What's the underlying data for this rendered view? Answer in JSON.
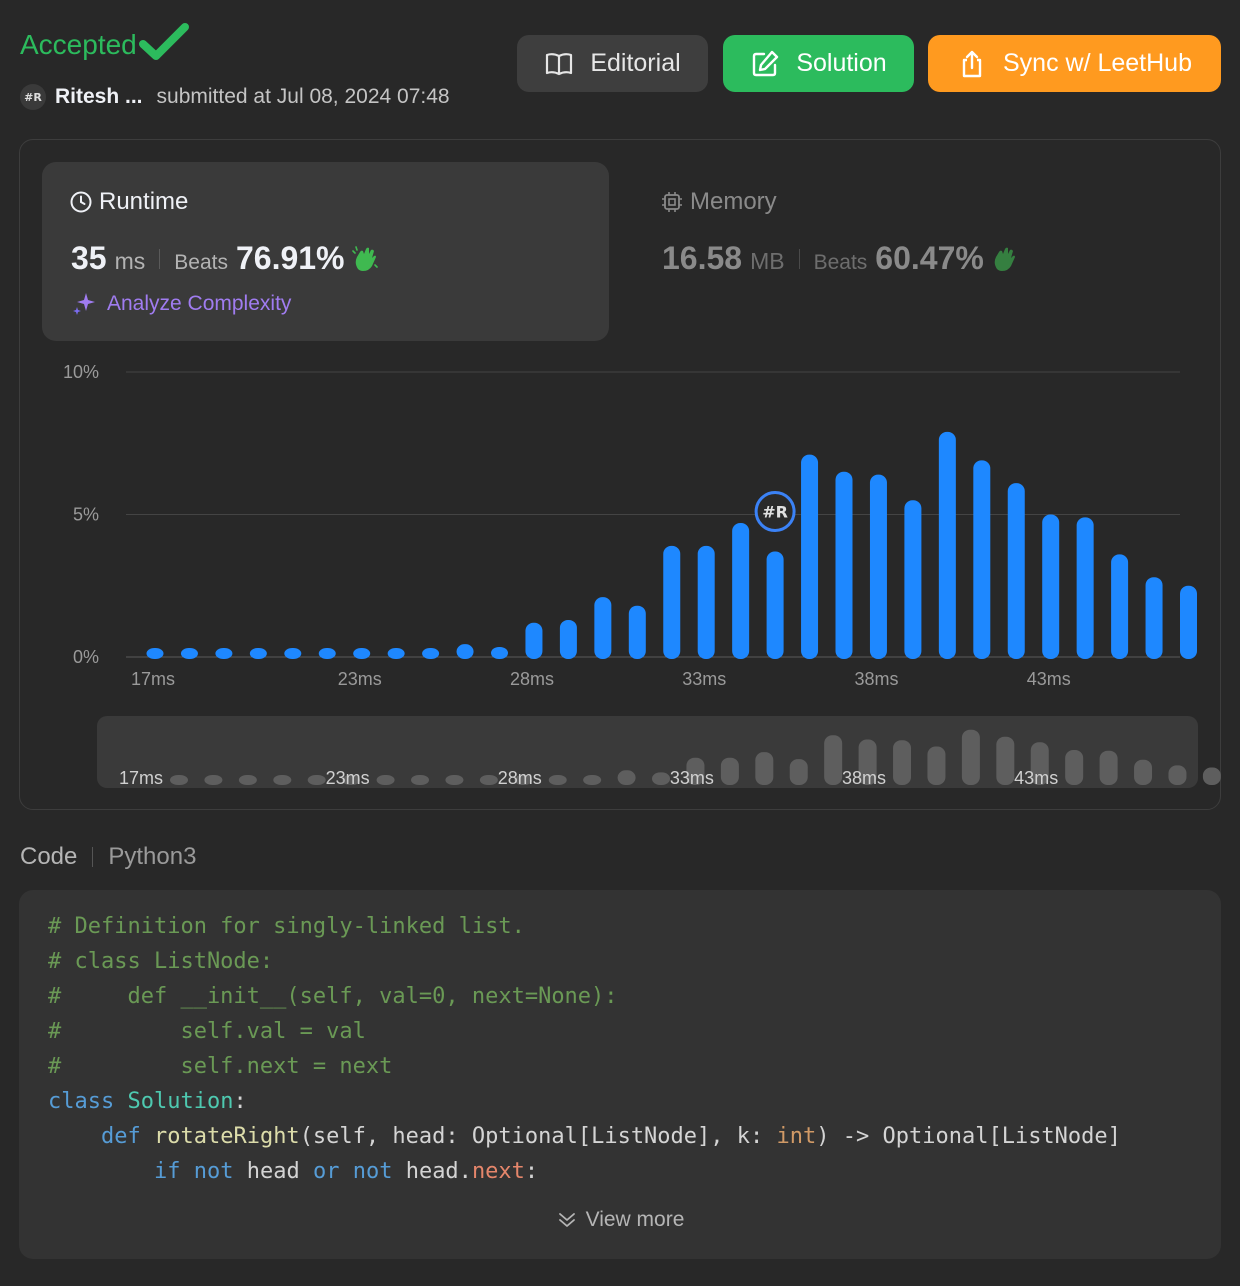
{
  "header": {
    "status": "Accepted",
    "username": "Ritesh ...",
    "submitted": "submitted at Jul 08, 2024 07:48",
    "avatar_text": "#R",
    "buttons": {
      "editorial": "Editorial",
      "solution": "Solution",
      "sync": "Sync w/ LeetHub"
    }
  },
  "runtime": {
    "label": "Runtime",
    "value": "35",
    "unit": "ms",
    "beats_label": "Beats",
    "beats": "76.91%",
    "analyze": "Analyze Complexity"
  },
  "memory": {
    "label": "Memory",
    "value": "16.58",
    "unit": "MB",
    "beats_label": "Beats",
    "beats": "60.47%"
  },
  "colors": {
    "accepted": "#2cbb5d",
    "bar": "#1e88ff",
    "sync": "#ff9a1f",
    "analyze": "#a07cf0"
  },
  "chart_data": {
    "type": "bar",
    "unit": "ms",
    "x": [
      17,
      18,
      19,
      20,
      21,
      22,
      23,
      24,
      25,
      26,
      27,
      28,
      29,
      30,
      31,
      32,
      33,
      34,
      35,
      36,
      37,
      38,
      39,
      40,
      41,
      42,
      43,
      44,
      45,
      46,
      47
    ],
    "values": [
      0.15,
      0.15,
      0.15,
      0.15,
      0.15,
      0.15,
      0.15,
      0.15,
      0.15,
      0.45,
      0.35,
      1.2,
      1.3,
      2.1,
      1.8,
      3.9,
      3.9,
      4.7,
      3.7,
      7.1,
      6.5,
      6.4,
      5.5,
      7.9,
      6.9,
      6.1,
      5.0,
      4.9,
      3.6,
      2.8,
      2.5
    ],
    "xticks": [
      "17ms",
      "23ms",
      "28ms",
      "33ms",
      "38ms",
      "43ms"
    ],
    "xtick_values": [
      17,
      23,
      28,
      33,
      38,
      43
    ],
    "yticks": [
      "0%",
      "5%",
      "10%"
    ],
    "ylim": [
      0,
      10
    ],
    "highlight_x": 35,
    "highlight_label": "#R",
    "grid": true
  },
  "code": {
    "label": "Code",
    "language": "Python3",
    "view_more": "View more",
    "lines": [
      "# Definition for singly-linked list.",
      "# class ListNode:",
      "#     def __init__(self, val=0, next=None):",
      "#         self.val = val",
      "#         self.next = next",
      "class Solution:",
      "    def rotateRight(self, head: Optional[ListNode], k: int) -> Optional[ListNode]",
      "        if not head or not head.next:"
    ]
  }
}
